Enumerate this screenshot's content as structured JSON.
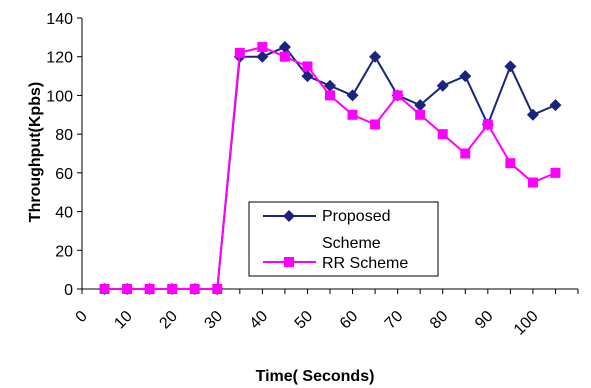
{
  "chart_data": {
    "type": "line",
    "xlabel": "Time( Seconds)",
    "ylabel": "Throughput(Kpbs)",
    "ylim": [
      0,
      140
    ],
    "yticks": [
      0,
      20,
      40,
      60,
      80,
      100,
      120,
      140
    ],
    "xticks": [
      "0",
      "10",
      "20",
      "30",
      "40",
      "50",
      "60",
      "70",
      "80",
      "90",
      "100"
    ],
    "x": [
      5,
      10,
      15,
      20,
      25,
      30,
      35,
      40,
      45,
      50,
      55,
      60,
      65,
      70,
      75,
      80,
      85,
      90,
      95,
      100,
      105,
      110
    ],
    "series": [
      {
        "name": "Proposed Scheme",
        "color": "#1a237e",
        "marker": "diamond",
        "values": [
          0,
          0,
          0,
          0,
          0,
          0,
          120,
          120,
          125,
          110,
          105,
          100,
          120,
          100,
          95,
          105,
          110,
          85,
          115,
          90,
          95,
          null
        ]
      },
      {
        "name": "RR Scheme",
        "color": "#ff00ff",
        "marker": "square",
        "values": [
          0,
          0,
          0,
          0,
          0,
          0,
          122,
          125,
          120,
          115,
          100,
          90,
          85,
          100,
          90,
          80,
          70,
          85,
          65,
          55,
          60,
          null
        ]
      }
    ],
    "legend": {
      "position": "lower-center",
      "entries": [
        "Proposed Scheme",
        "RR Scheme"
      ]
    },
    "grid": false
  }
}
